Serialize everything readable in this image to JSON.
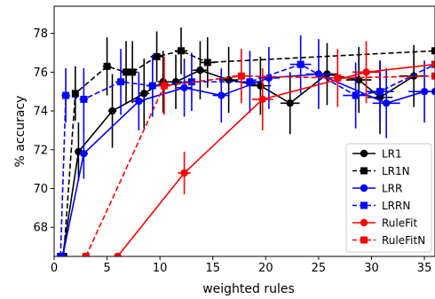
{
  "chart_data": {
    "type": "line",
    "title": "",
    "xlabel": "weighted rules",
    "ylabel": "% accuracy",
    "xlim": [
      0,
      36
    ],
    "ylim": [
      66.5,
      79.4
    ],
    "xticks": [
      0,
      5,
      10,
      15,
      20,
      25,
      30,
      35
    ],
    "yticks": [
      68,
      70,
      72,
      74,
      76,
      78
    ],
    "grid": false,
    "legend_position": "bottom-right",
    "series": [
      {
        "name": "LR1",
        "color": "#000000",
        "linestyle": "solid",
        "marker": "circle",
        "points": [
          {
            "x": 0.8,
            "y": 66.5,
            "xerr": 0,
            "yerr": 0
          },
          {
            "x": 2.3,
            "y": 71.9,
            "xerr": 0.3,
            "yerr": 1.5
          },
          {
            "x": 5.5,
            "y": 74.0,
            "xerr": 0.4,
            "yerr": 1.9
          },
          {
            "x": 8.5,
            "y": 74.9,
            "xerr": 0.5,
            "yerr": 1.8
          },
          {
            "x": 10.3,
            "y": 75.5,
            "xerr": 0.5,
            "yerr": 1.6
          },
          {
            "x": 11.5,
            "y": 75.5,
            "xerr": 0.6,
            "yerr": 1.4
          },
          {
            "x": 13.8,
            "y": 76.1,
            "xerr": 0.7,
            "yerr": 1.5
          },
          {
            "x": 16.5,
            "y": 75.6,
            "xerr": 0.9,
            "yerr": 1.7
          },
          {
            "x": 19.5,
            "y": 75.3,
            "xerr": 1.0,
            "yerr": 1.5
          },
          {
            "x": 22.3,
            "y": 74.4,
            "xerr": 0.9,
            "yerr": 1.6
          },
          {
            "x": 25.8,
            "y": 75.9,
            "xerr": 1.0,
            "yerr": 1.6
          },
          {
            "x": 28.8,
            "y": 75.6,
            "xerr": 1.2,
            "yerr": 1.7
          },
          {
            "x": 30.8,
            "y": 74.7,
            "xerr": 1.2,
            "yerr": 1.9
          },
          {
            "x": 34.0,
            "y": 75.8,
            "xerr": 1.4,
            "yerr": 1.6
          }
        ]
      },
      {
        "name": "LR1N",
        "color": "#000000",
        "linestyle": "dashed",
        "marker": "square",
        "points": [
          {
            "x": 0.9,
            "y": 66.5,
            "xerr": 0,
            "yerr": 0
          },
          {
            "x": 2.0,
            "y": 74.9,
            "xerr": 0.3,
            "yerr": 1.4
          },
          {
            "x": 5.0,
            "y": 76.3,
            "xerr": 0.4,
            "yerr": 1.5
          },
          {
            "x": 6.8,
            "y": 76.0,
            "xerr": 0.5,
            "yerr": 1.6
          },
          {
            "x": 7.4,
            "y": 76.0,
            "xerr": 0.5,
            "yerr": 1.6
          },
          {
            "x": 9.7,
            "y": 76.8,
            "xerr": 0.6,
            "yerr": 1.3
          },
          {
            "x": 12.0,
            "y": 77.1,
            "xerr": 0.6,
            "yerr": 1.2
          },
          {
            "x": 14.5,
            "y": 76.5,
            "xerr": 0.7,
            "yerr": 1.3
          },
          {
            "x": 36.0,
            "y": 77.1,
            "xerr": 0,
            "yerr": 0
          }
        ]
      },
      {
        "name": "LRR",
        "color": "#0000ff",
        "linestyle": "solid",
        "marker": "circle",
        "points": [
          {
            "x": 0.8,
            "y": 66.5,
            "xerr": 0,
            "yerr": 0
          },
          {
            "x": 2.8,
            "y": 71.8,
            "xerr": 0.4,
            "yerr": 1.3
          },
          {
            "x": 8.0,
            "y": 74.5,
            "xerr": 0.6,
            "yerr": 1.5
          },
          {
            "x": 12.3,
            "y": 75.2,
            "xerr": 0.7,
            "yerr": 1.5
          },
          {
            "x": 15.8,
            "y": 74.8,
            "xerr": 0.8,
            "yerr": 1.4
          },
          {
            "x": 20.3,
            "y": 75.7,
            "xerr": 1.0,
            "yerr": 1.6
          },
          {
            "x": 25.0,
            "y": 75.9,
            "xerr": 1.2,
            "yerr": 1.8
          },
          {
            "x": 31.4,
            "y": 74.4,
            "xerr": 1.3,
            "yerr": 1.8
          },
          {
            "x": 35.0,
            "y": 75.0,
            "xerr": 1.5,
            "yerr": 1.6
          },
          {
            "x": 36.0,
            "y": 75.0,
            "xerr": 0,
            "yerr": 0
          }
        ]
      },
      {
        "name": "LRRN",
        "color": "#0000ff",
        "linestyle": "dashed",
        "marker": "square",
        "points": [
          {
            "x": 0.6,
            "y": 66.5,
            "xerr": 0,
            "yerr": 0
          },
          {
            "x": 1.1,
            "y": 74.8,
            "xerr": 0.4,
            "yerr": 1.4
          },
          {
            "x": 2.8,
            "y": 74.6,
            "xerr": 0.4,
            "yerr": 1.6
          },
          {
            "x": 6.3,
            "y": 75.5,
            "xerr": 0.5,
            "yerr": 1.7
          },
          {
            "x": 9.3,
            "y": 75.3,
            "xerr": 0.6,
            "yerr": 1.6
          },
          {
            "x": 13.0,
            "y": 75.5,
            "xerr": 0.7,
            "yerr": 1.5
          },
          {
            "x": 18.5,
            "y": 75.5,
            "xerr": 0.9,
            "yerr": 1.6
          },
          {
            "x": 23.3,
            "y": 76.4,
            "xerr": 1.0,
            "yerr": 1.5
          },
          {
            "x": 28.5,
            "y": 74.8,
            "xerr": 1.2,
            "yerr": 1.7
          },
          {
            "x": 30.8,
            "y": 75.0,
            "xerr": 1.3,
            "yerr": 1.6
          },
          {
            "x": 36.0,
            "y": 76.4,
            "xerr": 0,
            "yerr": 0
          }
        ]
      },
      {
        "name": "RuleFit",
        "color": "#ff0000",
        "linestyle": "solid",
        "marker": "circle",
        "points": [
          {
            "x": 6.0,
            "y": 66.5,
            "xerr": 0,
            "yerr": 0
          },
          {
            "x": 12.3,
            "y": 70.8,
            "xerr": 0.6,
            "yerr": 1.1
          },
          {
            "x": 19.7,
            "y": 74.6,
            "xerr": 1.0,
            "yerr": 1.6
          },
          {
            "x": 29.5,
            "y": 76.0,
            "xerr": 1.3,
            "yerr": 1.6
          },
          {
            "x": 36.0,
            "y": 76.4,
            "xerr": 0,
            "yerr": 0
          }
        ]
      },
      {
        "name": "RuleFitN",
        "color": "#ff0000",
        "linestyle": "dashed",
        "marker": "square",
        "points": [
          {
            "x": 3.0,
            "y": 66.5,
            "xerr": 0,
            "yerr": 0
          },
          {
            "x": 10.4,
            "y": 75.3,
            "xerr": 0.6,
            "yerr": 1.5
          },
          {
            "x": 17.7,
            "y": 75.8,
            "xerr": 0.8,
            "yerr": 1.4
          },
          {
            "x": 26.8,
            "y": 75.7,
            "xerr": 1.2,
            "yerr": 1.5
          },
          {
            "x": 36.0,
            "y": 75.8,
            "xerr": 0,
            "yerr": 0
          }
        ]
      }
    ]
  }
}
